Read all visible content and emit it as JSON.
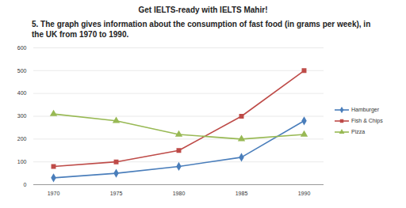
{
  "chart_data": {
    "type": "line",
    "title": "Get IELTS-ready with IELTS Mahir!",
    "subtitle": "5. The graph gives information about the consumption of fast food (in grams per week), in the UK from 1970 to 1990.",
    "categories": [
      "1970",
      "1975",
      "1980",
      "1985",
      "1990"
    ],
    "series": [
      {
        "name": "Hamburger",
        "color": "#4a7ebb",
        "marker": "diamond",
        "values": [
          30,
          50,
          80,
          120,
          280
        ]
      },
      {
        "name": "Fish & Chips",
        "color": "#be4b48",
        "marker": "square",
        "values": [
          80,
          100,
          150,
          300,
          500
        ]
      },
      {
        "name": "Pizza",
        "color": "#98b954",
        "marker": "triangle",
        "values": [
          310,
          280,
          220,
          200,
          220
        ]
      }
    ],
    "ylim": [
      0,
      600
    ],
    "yticks": [
      0,
      100,
      200,
      300,
      400,
      500,
      600
    ],
    "grid": true,
    "legend": "right"
  }
}
